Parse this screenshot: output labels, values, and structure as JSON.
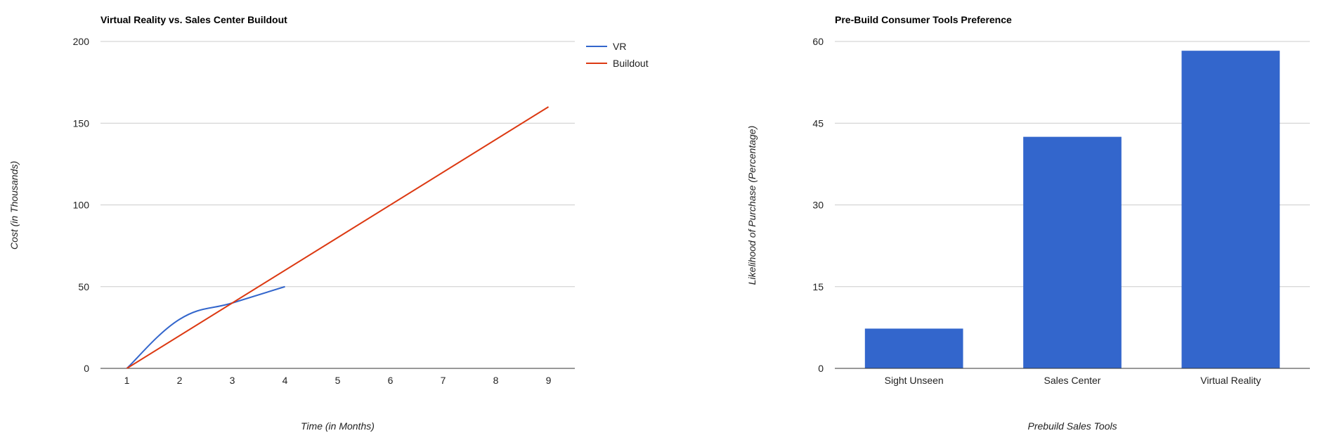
{
  "chart_data": [
    {
      "type": "line",
      "title": "Virtual Reality vs. Sales Center Buildout",
      "xlabel": "Time (in Months)",
      "ylabel": "Cost (in Thousands)",
      "xlim": [
        0.5,
        9.5
      ],
      "ylim": [
        0,
        200
      ],
      "x_ticks": [
        "1",
        "2",
        "3",
        "4",
        "5",
        "6",
        "7",
        "8",
        "9"
      ],
      "y_ticks": [
        "0",
        "50",
        "100",
        "150",
        "200"
      ],
      "grid": true,
      "legend_position": "right",
      "series": [
        {
          "name": "VR",
          "color": "#3366cc",
          "x": [
            1,
            2,
            3,
            4
          ],
          "y": [
            0,
            30,
            40,
            50
          ]
        },
        {
          "name": "Buildout",
          "color": "#dc3912",
          "x": [
            1,
            9
          ],
          "y": [
            0,
            160
          ]
        }
      ]
    },
    {
      "type": "bar",
      "title": "Pre-Build Consumer Tools Preference",
      "xlabel": "Prebuild Sales Tools",
      "ylabel": "Likelihood of Purchase (Percentage)",
      "ylim": [
        0,
        60
      ],
      "y_ticks": [
        "0",
        "15",
        "30",
        "45",
        "60"
      ],
      "grid": true,
      "color": "#3366cc",
      "categories": [
        "Sight Unseen",
        "Sales Center",
        "Virtual Reality"
      ],
      "values": [
        7.3,
        42.5,
        58.3
      ]
    }
  ]
}
